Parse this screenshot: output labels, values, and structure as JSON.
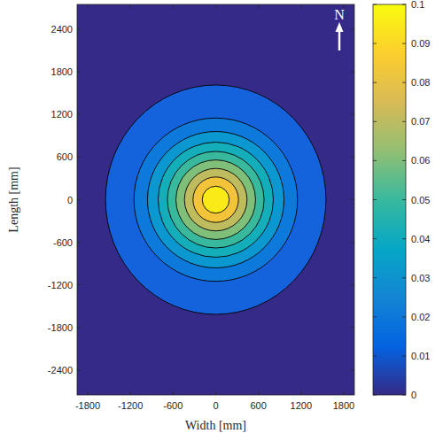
{
  "chart_data": {
    "type": "contour",
    "x_label": "Width [mm]",
    "y_label": "Length [mm]",
    "xlim": [
      -1950,
      1950
    ],
    "ylim": [
      -2750,
      2750
    ],
    "xticks": [
      -1800,
      -1200,
      -600,
      0,
      600,
      1200,
      1800
    ],
    "yticks": [
      -2400,
      -1800,
      -1200,
      -600,
      0,
      600,
      1200,
      1800,
      2400
    ],
    "center": [
      0,
      0
    ],
    "contours": [
      {
        "level": 0,
        "color": "#352a87"
      },
      {
        "level": 0.01,
        "rx": 1550,
        "ry": 1615,
        "color": "#1563dc"
      },
      {
        "level": 0.02,
        "rx": 1150,
        "ry": 1150,
        "color": "#0d79da"
      },
      {
        "level": 0.03,
        "rx": 960,
        "ry": 960,
        "color": "#0b97cf"
      },
      {
        "level": 0.04,
        "rx": 810,
        "ry": 810,
        "color": "#14aebb"
      },
      {
        "level": 0.05,
        "rx": 680,
        "ry": 680,
        "color": "#38b99e"
      },
      {
        "level": 0.06,
        "rx": 560,
        "ry": 560,
        "color": "#80bf7a"
      },
      {
        "level": 0.07,
        "rx": 440,
        "ry": 440,
        "color": "#bfbc60"
      },
      {
        "level": 0.08,
        "rx": 320,
        "ry": 320,
        "color": "#f3c43a"
      },
      {
        "level": 0.09,
        "rx": 190,
        "ry": 190,
        "color": "#f9ea18"
      }
    ],
    "colorbar": {
      "range": [
        0,
        0.1
      ],
      "ticks": [
        0,
        0.01,
        0.02,
        0.03,
        0.04,
        0.05,
        0.06,
        0.07,
        0.08,
        0.09,
        0.1
      ]
    },
    "annotations": [
      "N"
    ]
  }
}
